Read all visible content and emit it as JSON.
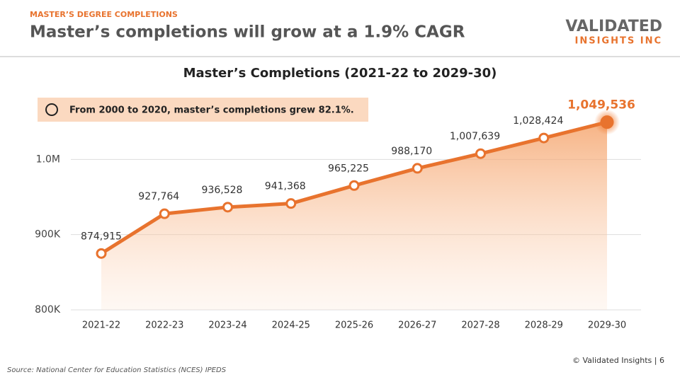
{
  "header": {
    "kicker": "MASTER’S DEGREE COMPLETIONS",
    "title": "Master’s completions will grow at a 1.9% CAGR"
  },
  "logo": {
    "line1": "VALIDATED",
    "line2": "INSIGHTS INC"
  },
  "callout": "From 2000 to 2020, master’s completions grew 82.1%.",
  "chart_data": {
    "type": "line",
    "title": "Master’s Completions (2021-22 to 2029-30)",
    "categories": [
      "2021-22",
      "2022-23",
      "2023-24",
      "2024-25",
      "2025-26",
      "2026-27",
      "2027-28",
      "2028-29",
      "2029-30"
    ],
    "values": [
      874915,
      927764,
      936528,
      941368,
      965225,
      988170,
      1007639,
      1028424,
      1049536
    ],
    "value_labels": [
      "874,915",
      "927,764",
      "936,528",
      "941,368",
      "965,225",
      "988,170",
      "1,007,639",
      "1,028,424",
      "1,049,536"
    ],
    "color": "#e8732e",
    "ylim": [
      800000,
      1100000
    ],
    "yticks": [
      {
        "value": 800000,
        "label": "800K"
      },
      {
        "value": 900000,
        "label": "900K"
      },
      {
        "value": 1000000,
        "label": "1.0M"
      }
    ],
    "grid": true
  },
  "footer": {
    "copyright": "© Validated Insights | 6",
    "source": "Source: National Center for Education Statistics (NCES) IPEDS"
  }
}
